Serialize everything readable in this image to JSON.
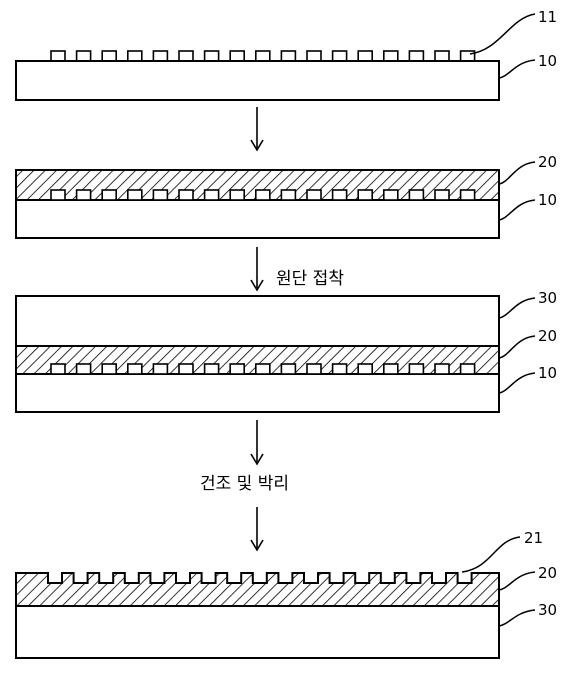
{
  "labels": {
    "bumps": "11",
    "substrate": "10",
    "resin": "20",
    "fabric": "30",
    "pattern": "21"
  },
  "steps": {
    "bond": "원단 접착",
    "dry_peel": "건조 및 박리"
  },
  "colors": {
    "stroke": "#000000",
    "fill": "#ffffff"
  }
}
